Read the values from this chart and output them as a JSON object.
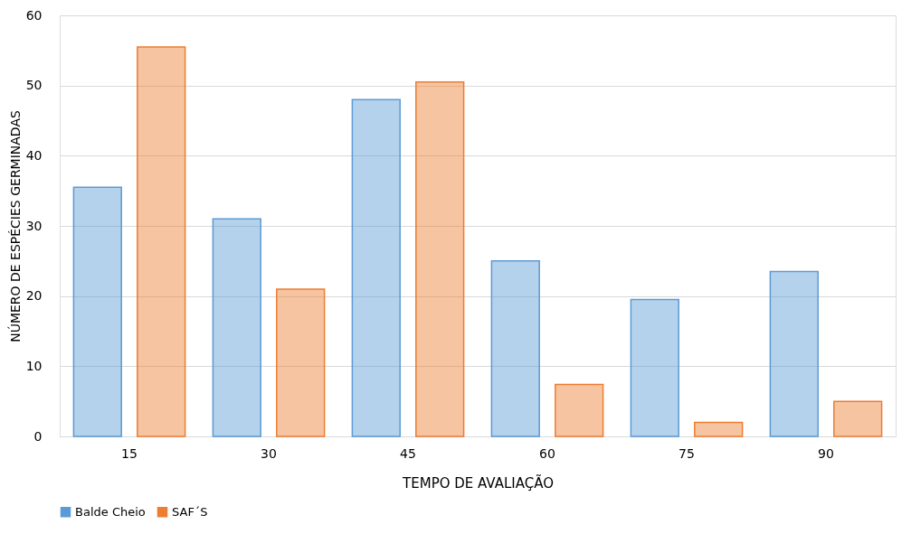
{
  "chart_data": {
    "type": "bar",
    "xlabel": "TEMPO DE AVALIAÇÃO",
    "ylabel": "NÚMERO DE ESPÉCIES GERMINADAS",
    "categories": [
      "15",
      "30",
      "45",
      "60",
      "75",
      "90"
    ],
    "series": [
      {
        "name": "Balde Cheio",
        "color": "#5b9bd5",
        "values": [
          35.5,
          31,
          48,
          25,
          19.5,
          23.5
        ]
      },
      {
        "name": "SAF´S",
        "color": "#ed7d31",
        "values": [
          55.5,
          21,
          50.5,
          7.4,
          2,
          5
        ]
      }
    ],
    "ylim": [
      0,
      60
    ],
    "yticks": [
      0,
      10,
      20,
      30,
      40,
      50,
      60
    ],
    "grid": "y",
    "legend": "bottom"
  }
}
